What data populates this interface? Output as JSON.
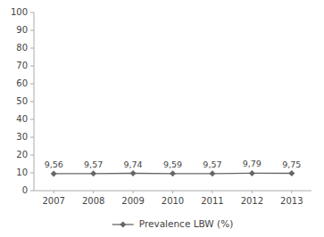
{
  "chart_data": {
    "type": "line",
    "x": [
      2007,
      2008,
      2009,
      2010,
      2011,
      2012,
      2013
    ],
    "series": [
      {
        "name": "Prevalence LBW (%)",
        "color": "#666666",
        "marker": "diamond",
        "values": [
          9.56,
          9.57,
          9.74,
          9.59,
          9.57,
          9.79,
          9.75
        ],
        "value_labels": [
          "9,56",
          "9,57",
          "9,74",
          "9,59",
          "9,57",
          "9,79",
          "9,75"
        ]
      }
    ],
    "xlim": [
      2006.5,
      2013.5
    ],
    "xticks": [
      2007,
      2008,
      2009,
      2010,
      2011,
      2012,
      2013
    ],
    "ylim": [
      0,
      100
    ],
    "yticks": [
      0,
      10,
      20,
      30,
      40,
      50,
      60,
      70,
      80,
      90,
      100
    ],
    "data_labels": true,
    "legend": "bottom",
    "grid": false
  }
}
